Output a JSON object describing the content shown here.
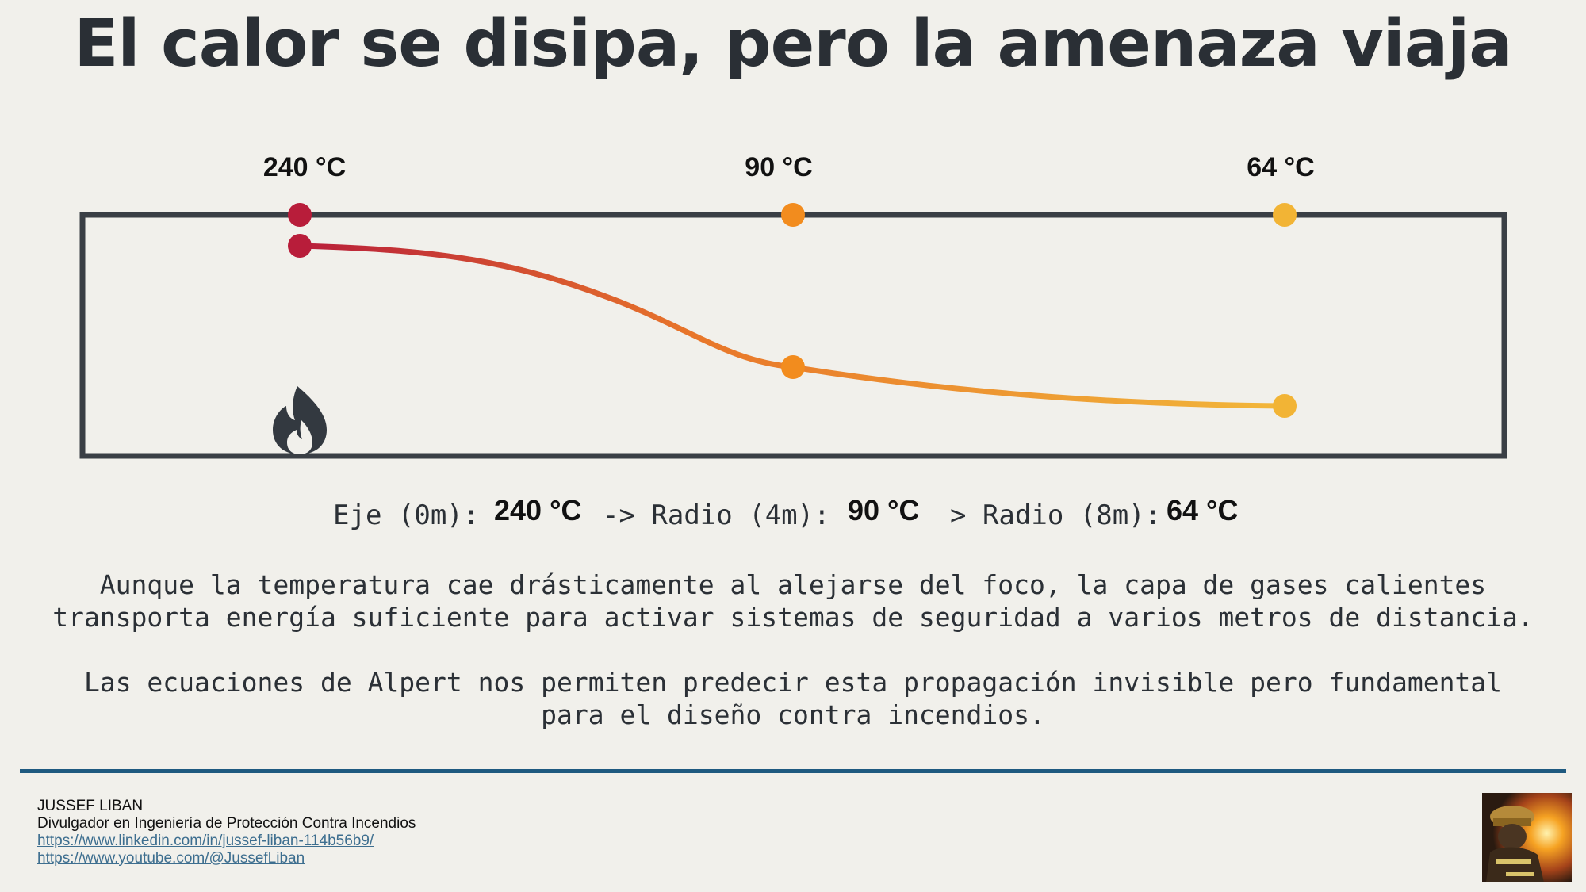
{
  "title": "El calor se disipa, pero la amenaza viaja",
  "diagram": {
    "points": [
      {
        "label": "240 °C",
        "radius_m": 0,
        "temperature_c": 240,
        "color": "#b81d3a"
      },
      {
        "label": "90 °C",
        "radius_m": 4,
        "temperature_c": 90,
        "color": "#f28c1e"
      },
      {
        "label": "64 °C",
        "radius_m": 8,
        "temperature_c": 64,
        "color": "#f2b435"
      }
    ],
    "curve_colors": {
      "start": "#b81d3a",
      "mid": "#e8762a",
      "end": "#f2b73a"
    },
    "frame_color": "#3a3f45",
    "source_icon": "fire-icon"
  },
  "summary": {
    "eje_label": "Eje (0m):",
    "eje_value": "240 °C",
    "radio4_label": "-> Radio (4m):",
    "radio4_value": "90 °C",
    "radio8_label": "> Radio (8m):",
    "radio8_value": "64 °C"
  },
  "paragraphs": {
    "p1_line1": "Aunque la temperatura cae drásticamente al alejarse del foco, la capa de gases calientes",
    "p1_line2": "transporta energía suficiente para activar sistemas de seguridad a varios metros de distancia.",
    "p2_line1": "Las ecuaciones de Alpert nos permiten predecir esta propagación invisible pero fundamental",
    "p2_line2": "para el diseño contra incendios."
  },
  "footer": {
    "name": "JUSSEF LIBAN",
    "role": "Divulgador en Ingeniería de Protección Contra Incendios",
    "linkedin": "https://www.linkedin.com/in/jussef-liban-114b56b9/",
    "youtube": "https://www.youtube.com/@JussefLiban"
  },
  "colors": {
    "background": "#f1f0eb",
    "divider": "#1f5a80",
    "link": "#3d6e8f"
  }
}
